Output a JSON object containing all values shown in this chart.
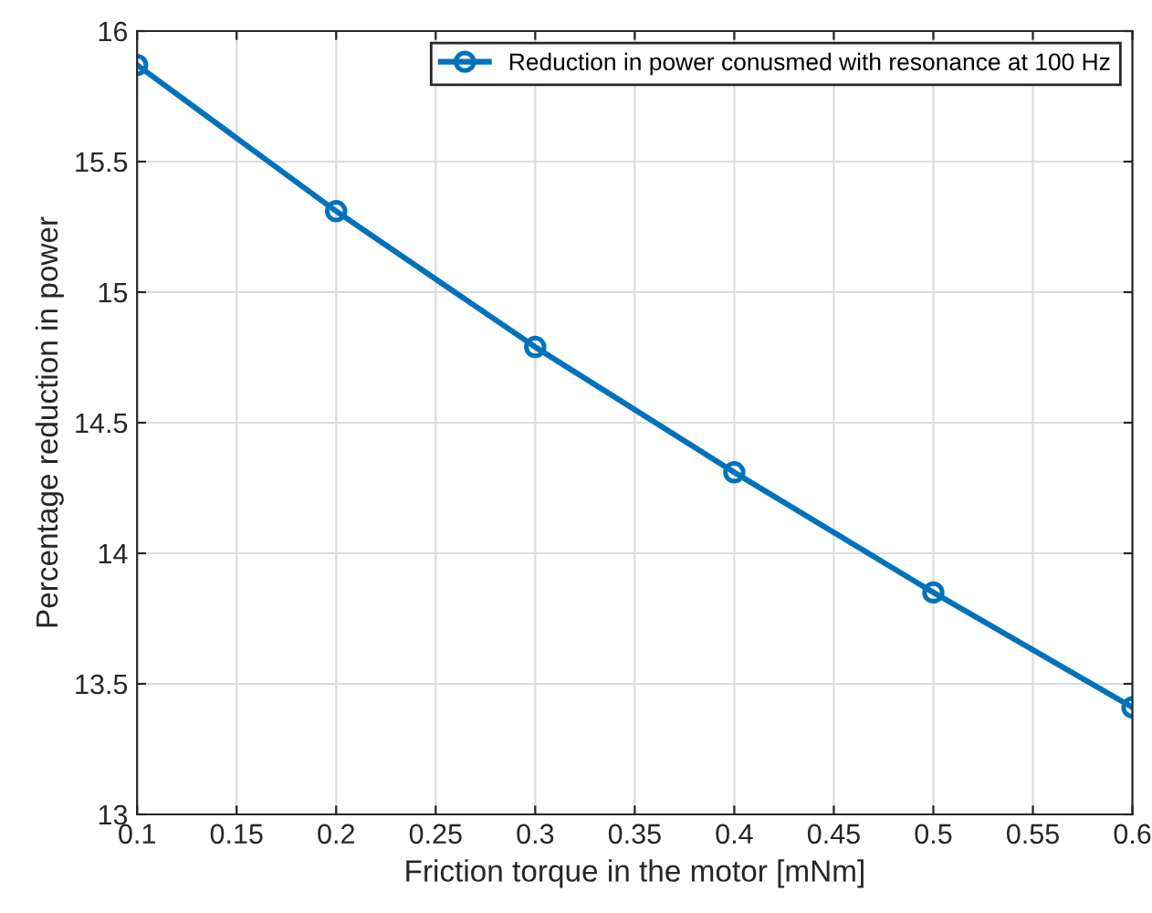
{
  "chart_data": {
    "type": "line",
    "xlabel": "Friction torque in the motor [mNm]",
    "ylabel": "Percentage reduction in power",
    "x": [
      0.1,
      0.2,
      0.3,
      0.4,
      0.5,
      0.6
    ],
    "series": [
      {
        "name": "Reduction in power conusmed with resonance at 100 Hz",
        "color": "#0072bd",
        "values": [
          15.87,
          15.31,
          14.79,
          14.31,
          13.85,
          13.41
        ]
      }
    ],
    "xlim": [
      0.1,
      0.6
    ],
    "xticks": [
      0.1,
      0.15,
      0.2,
      0.25,
      0.3,
      0.35,
      0.4,
      0.45,
      0.5,
      0.55,
      0.6
    ],
    "ylim": [
      13,
      16
    ],
    "yticks": [
      13,
      13.5,
      14,
      14.5,
      15,
      15.5,
      16
    ],
    "grid": true,
    "legend": "top right",
    "marker": "circle",
    "line_style": "solid"
  }
}
